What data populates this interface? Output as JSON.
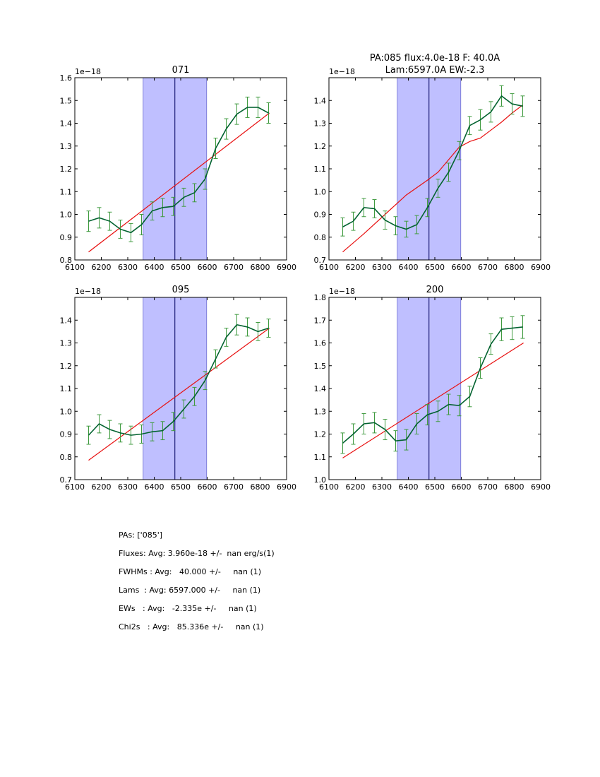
{
  "chart_data": [
    {
      "type": "line",
      "title": "071",
      "exponent_label": "1e−18",
      "xlim": [
        6100,
        6900
      ],
      "ylim": [
        0.8,
        1.6
      ],
      "xticks": [
        6100,
        6200,
        6300,
        6400,
        6500,
        6600,
        6700,
        6800,
        6900
      ],
      "xtick_labels": [
        "6100",
        "6200",
        "6300",
        "6400",
        "6500",
        "6600",
        "6700",
        "6800",
        "6900"
      ],
      "yticks": [
        0.8,
        0.9,
        1.0,
        1.1,
        1.2,
        1.3,
        1.4,
        1.5,
        1.6
      ],
      "ytick_labels": [
        "0.8",
        "0.9",
        "1.0",
        "1.1",
        "1.2",
        "1.3",
        "1.4",
        "1.5",
        "1.6"
      ],
      "span": [
        6358,
        6598
      ],
      "vline": 6478,
      "fit_line": {
        "x": [
          6152,
          6835
        ],
        "y": [
          0.835,
          1.445
        ]
      },
      "series": [
        {
          "name": "data",
          "x": [
            6152,
            6192,
            6232,
            6272,
            6312,
            6352,
            6392,
            6432,
            6472,
            6512,
            6552,
            6592,
            6632,
            6672,
            6712,
            6752,
            6792,
            6832
          ],
          "y": [
            0.97,
            0.985,
            0.97,
            0.935,
            0.92,
            0.955,
            1.015,
            1.03,
            1.035,
            1.075,
            1.095,
            1.155,
            1.29,
            1.375,
            1.44,
            1.47,
            1.47,
            1.445
          ],
          "err": [
            0.045,
            0.045,
            0.04,
            0.04,
            0.04,
            0.045,
            0.04,
            0.04,
            0.04,
            0.04,
            0.04,
            0.045,
            0.045,
            0.045,
            0.045,
            0.045,
            0.045,
            0.045
          ]
        }
      ]
    },
    {
      "type": "line",
      "title_lines": [
        "PA:085 flux:4.0e-18 F: 40.0A",
        "Lam:6597.0A EW:-2.3"
      ],
      "exponent_label": "1e−18",
      "xlim": [
        6100,
        6900
      ],
      "ylim": [
        0.7,
        1.5
      ],
      "xticks": [
        6100,
        6200,
        6300,
        6400,
        6500,
        6600,
        6700,
        6800,
        6900
      ],
      "xtick_labels": [
        "6100",
        "6200",
        "6300",
        "6400",
        "6500",
        "6600",
        "6700",
        "6800",
        "6900"
      ],
      "yticks": [
        0.7,
        0.8,
        0.9,
        1.0,
        1.1,
        1.2,
        1.3,
        1.4
      ],
      "ytick_labels": [
        "0.7",
        "0.8",
        "0.9",
        "1.0",
        "1.1",
        "1.2",
        "1.3",
        "1.4"
      ],
      "span": [
        6358,
        6598
      ],
      "vline": 6478,
      "fit_curve": {
        "x": [
          6152,
          6232,
          6312,
          6392,
          6472,
          6512,
          6552,
          6592,
          6632,
          6672,
          6712,
          6752,
          6792,
          6832
        ],
        "y": [
          0.735,
          0.815,
          0.9,
          0.985,
          1.05,
          1.085,
          1.14,
          1.195,
          1.22,
          1.235,
          1.27,
          1.305,
          1.345,
          1.38
        ]
      },
      "series": [
        {
          "name": "data",
          "x": [
            6152,
            6192,
            6232,
            6272,
            6312,
            6352,
            6392,
            6432,
            6472,
            6512,
            6552,
            6592,
            6632,
            6672,
            6712,
            6752,
            6792,
            6832
          ],
          "y": [
            0.845,
            0.87,
            0.93,
            0.925,
            0.875,
            0.85,
            0.835,
            0.855,
            0.93,
            1.015,
            1.085,
            1.18,
            1.29,
            1.315,
            1.35,
            1.42,
            1.385,
            1.375
          ],
          "err": [
            0.04,
            0.04,
            0.04,
            0.04,
            0.04,
            0.04,
            0.035,
            0.04,
            0.04,
            0.04,
            0.04,
            0.04,
            0.04,
            0.045,
            0.045,
            0.045,
            0.045,
            0.045
          ]
        }
      ]
    },
    {
      "type": "line",
      "title": "095",
      "exponent_label": "1e−18",
      "xlim": [
        6100,
        6900
      ],
      "ylim": [
        0.7,
        1.5
      ],
      "xticks": [
        6100,
        6200,
        6300,
        6400,
        6500,
        6600,
        6700,
        6800,
        6900
      ],
      "xtick_labels": [
        "6100",
        "6200",
        "6300",
        "6400",
        "6500",
        "6600",
        "6700",
        "6800",
        "6900"
      ],
      "yticks": [
        0.7,
        0.8,
        0.9,
        1.0,
        1.1,
        1.2,
        1.3,
        1.4
      ],
      "ytick_labels": [
        "0.7",
        "0.8",
        "0.9",
        "1.0",
        "1.1",
        "1.2",
        "1.3",
        "1.4"
      ],
      "span": [
        6358,
        6598
      ],
      "vline": 6478,
      "fit_line": {
        "x": [
          6152,
          6835
        ],
        "y": [
          0.785,
          1.365
        ]
      },
      "series": [
        {
          "name": "data",
          "x": [
            6152,
            6192,
            6232,
            6272,
            6312,
            6352,
            6392,
            6432,
            6472,
            6512,
            6552,
            6592,
            6632,
            6672,
            6712,
            6752,
            6792,
            6832
          ],
          "y": [
            0.895,
            0.945,
            0.92,
            0.905,
            0.895,
            0.9,
            0.91,
            0.915,
            0.955,
            1.01,
            1.065,
            1.135,
            1.23,
            1.325,
            1.38,
            1.37,
            1.35,
            1.365
          ],
          "err": [
            0.04,
            0.04,
            0.04,
            0.04,
            0.04,
            0.04,
            0.04,
            0.04,
            0.04,
            0.04,
            0.04,
            0.04,
            0.04,
            0.04,
            0.045,
            0.04,
            0.04,
            0.04
          ]
        }
      ]
    },
    {
      "type": "line",
      "title": "200",
      "exponent_label": "1e−18",
      "xlim": [
        6100,
        6900
      ],
      "ylim": [
        1.0,
        1.8
      ],
      "xticks": [
        6100,
        6200,
        6300,
        6400,
        6500,
        6600,
        6700,
        6800,
        6900
      ],
      "xtick_labels": [
        "6100",
        "6200",
        "6300",
        "6400",
        "6500",
        "6600",
        "6700",
        "6800",
        "6900"
      ],
      "yticks": [
        1.0,
        1.1,
        1.2,
        1.3,
        1.4,
        1.5,
        1.6,
        1.7,
        1.8
      ],
      "ytick_labels": [
        "1.0",
        "1.1",
        "1.2",
        "1.3",
        "1.4",
        "1.5",
        "1.6",
        "1.7",
        "1.8"
      ],
      "span": [
        6358,
        6598
      ],
      "vline": 6478,
      "fit_line": {
        "x": [
          6152,
          6835
        ],
        "y": [
          1.095,
          1.6
        ]
      },
      "series": [
        {
          "name": "data",
          "x": [
            6152,
            6192,
            6232,
            6272,
            6312,
            6352,
            6392,
            6432,
            6472,
            6512,
            6552,
            6592,
            6632,
            6672,
            6712,
            6752,
            6792,
            6832
          ],
          "y": [
            1.16,
            1.2,
            1.245,
            1.25,
            1.22,
            1.17,
            1.175,
            1.245,
            1.285,
            1.3,
            1.33,
            1.325,
            1.365,
            1.49,
            1.595,
            1.66,
            1.665,
            1.67
          ],
          "err": [
            0.045,
            0.045,
            0.045,
            0.045,
            0.045,
            0.045,
            0.045,
            0.045,
            0.045,
            0.045,
            0.045,
            0.045,
            0.045,
            0.045,
            0.045,
            0.05,
            0.05,
            0.05
          ]
        }
      ]
    }
  ],
  "colors": {
    "span": "#bfbfff",
    "span_edge": "#6a6ad0",
    "vline": "#000060",
    "fit": "#e81010",
    "data": "#036330",
    "errorbar": "#3f9a3f"
  },
  "notes": {
    "pas": "PAs: ['085']",
    "fluxes": "Fluxes: Avg: 3.960e-18 +/-  nan erg/s(1)",
    "fwhms": "FWHMs : Avg:   40.000 +/-     nan (1)",
    "lams": "Lams  : Avg: 6597.000 +/-     nan (1)",
    "ews": "EWs   : Avg:   -2.335e +/-     nan (1)",
    "chi2s": "Chi2s   : Avg:   85.336e +/-     nan (1)"
  }
}
